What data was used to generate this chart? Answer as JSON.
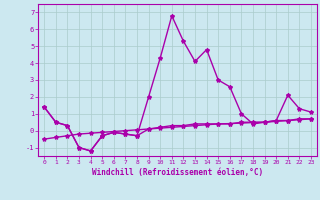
{
  "x": [
    0,
    1,
    2,
    3,
    4,
    5,
    6,
    7,
    8,
    9,
    10,
    11,
    12,
    13,
    14,
    15,
    16,
    17,
    18,
    19,
    20,
    21,
    22,
    23
  ],
  "line1": [
    1.4,
    0.5,
    0.3,
    -1.0,
    -1.2,
    -0.3,
    -0.1,
    -0.2,
    -0.3,
    2.0,
    4.3,
    6.8,
    5.3,
    4.1,
    4.8,
    3.0,
    2.6,
    1.0,
    0.4,
    0.5,
    0.6,
    2.1,
    1.3,
    1.1
  ],
  "line2": [
    1.4,
    0.5,
    0.3,
    -1.0,
    -1.2,
    -0.3,
    -0.1,
    -0.2,
    -0.3,
    0.1,
    0.2,
    0.3,
    0.3,
    0.4,
    0.4,
    0.4,
    0.4,
    0.5,
    0.5,
    0.5,
    0.6,
    0.6,
    0.7,
    0.7
  ],
  "line3": [
    -0.5,
    -0.4,
    -0.3,
    -0.2,
    -0.15,
    -0.1,
    -0.05,
    0.0,
    0.05,
    0.1,
    0.15,
    0.2,
    0.25,
    0.3,
    0.35,
    0.4,
    0.42,
    0.45,
    0.48,
    0.5,
    0.55,
    0.6,
    0.65,
    0.7
  ],
  "line_color": "#aa00aa",
  "bg_color": "#cce8f0",
  "grid_color": "#aacccc",
  "ylim": [
    -1.5,
    7.5
  ],
  "xlim": [
    -0.5,
    23.5
  ],
  "yticks": [
    -1,
    0,
    1,
    2,
    3,
    4,
    5,
    6,
    7
  ],
  "xticks": [
    0,
    1,
    2,
    3,
    4,
    5,
    6,
    7,
    8,
    9,
    10,
    11,
    12,
    13,
    14,
    15,
    16,
    17,
    18,
    19,
    20,
    21,
    22,
    23
  ],
  "xlabel": "Windchill (Refroidissement éolien,°C)",
  "marker": "*",
  "markersize": 3,
  "linewidth": 1.0
}
